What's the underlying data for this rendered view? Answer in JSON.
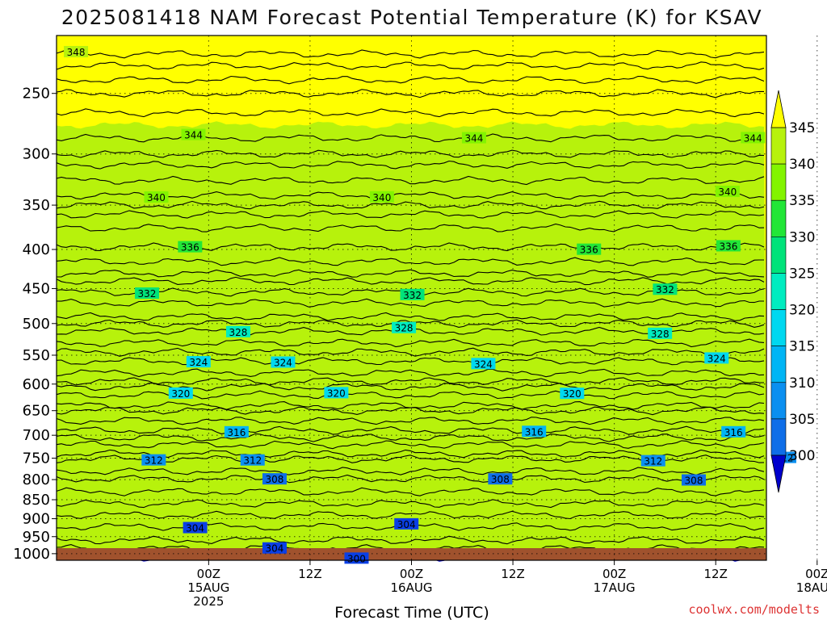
{
  "page": {
    "title": "2025081418 NAM Forecast Potential Temperature (K) for KSAV",
    "credit": "coolwx.com/modelts"
  },
  "colors": {
    "ground": "#a0522d",
    "fills": [
      "#0000cd",
      "#0a3fe6",
      "#0f6ee8",
      "#0b8ff0",
      "#00b5f5",
      "#00d8f0",
      "#00ecc0",
      "#00e37a",
      "#22e637",
      "#83f400",
      "#b7f20c",
      "#ffff00"
    ],
    "contour": "#000000",
    "credit_text": "#dd3333"
  },
  "chart_data": {
    "type": "heatmap",
    "title": "2025081418 NAM Forecast Potential Temperature (K) for KSAV",
    "xlabel": "Forecast Time (UTC)",
    "ylabel": "",
    "variable_units": "K",
    "x_hours_from_00z_15aug": [
      -18,
      66
    ],
    "y_pressure_hpa": [
      1020,
      210
    ],
    "y_scale": "log-pressure, inverted (1000 hPa at bottom)",
    "grid": "dotted",
    "y_ticks": [
      250,
      300,
      350,
      400,
      450,
      500,
      550,
      600,
      650,
      700,
      750,
      800,
      850,
      900,
      950,
      1000
    ],
    "x_ticks": [
      {
        "hour": 0,
        "lines": [
          "00Z",
          "15AUG",
          "2025"
        ]
      },
      {
        "hour": 12,
        "lines": [
          "12Z"
        ]
      },
      {
        "hour": 24,
        "lines": [
          "00Z",
          "16AUG"
        ]
      },
      {
        "hour": 36,
        "lines": [
          "12Z"
        ]
      },
      {
        "hour": 48,
        "lines": [
          "00Z",
          "17AUG"
        ]
      },
      {
        "hour": 60,
        "lines": [
          "12Z"
        ]
      },
      {
        "hour": 72,
        "lines": [
          "00Z",
          "18AUG"
        ]
      }
    ],
    "colorbar": {
      "labels": [
        345,
        340,
        335,
        330,
        325,
        320,
        315,
        310,
        305,
        300
      ],
      "extend": "both"
    },
    "filled_bands": [
      {
        "from_k": 295,
        "to_k": 300
      },
      {
        "from_k": 300,
        "to_k": 305
      },
      {
        "from_k": 305,
        "to_k": 310
      },
      {
        "from_k": 310,
        "to_k": 315
      },
      {
        "from_k": 315,
        "to_k": 320
      },
      {
        "from_k": 320,
        "to_k": 325
      },
      {
        "from_k": 325,
        "to_k": 330
      },
      {
        "from_k": 330,
        "to_k": 335
      },
      {
        "from_k": 335,
        "to_k": 340
      },
      {
        "from_k": 340,
        "to_k": 345
      },
      {
        "from_k": 345,
        "to_k": 350
      }
    ],
    "contours": [
      {
        "value": 304,
        "label": "304",
        "pressure_hpa": 922,
        "labels_at_hours": [
          -1.6,
          23.4
        ]
      },
      {
        "value": 300,
        "label": "300",
        "pressure_hpa": 1010,
        "labels_at_hours": [
          17.5
        ]
      },
      {
        "value": 304,
        "label": "304",
        "pressure_hpa": 985,
        "labels_at_hours": [
          7.8
        ]
      },
      {
        "value": 308,
        "label": "308",
        "pressure_hpa": 798,
        "labels_at_hours": [
          7.8,
          34.5,
          57.4
        ]
      },
      {
        "value": 312,
        "label": "312",
        "pressure_hpa": 752,
        "labels_at_hours": [
          -6.5,
          5.2,
          52.6,
          68.1
        ]
      },
      {
        "value": 316,
        "label": "316",
        "pressure_hpa": 690,
        "labels_at_hours": [
          3.3,
          38.5,
          62.1
        ]
      },
      {
        "value": 320,
        "label": "320",
        "pressure_hpa": 620,
        "labels_at_hours": [
          -3.3,
          15.1,
          43.0
        ]
      },
      {
        "value": 324,
        "label": "324",
        "pressure_hpa": 560,
        "labels_at_hours": [
          -1.2,
          8.8,
          32.5,
          60.1
        ]
      },
      {
        "value": 328,
        "label": "328",
        "pressure_hpa": 512,
        "labels_at_hours": [
          3.5,
          23.1,
          53.4
        ]
      },
      {
        "value": 332,
        "label": "332",
        "pressure_hpa": 455,
        "labels_at_hours": [
          -7.3,
          24.1,
          54.0
        ]
      },
      {
        "value": 336,
        "label": "336",
        "pressure_hpa": 397,
        "labels_at_hours": [
          -2.2,
          45.0,
          61.5
        ]
      },
      {
        "value": 340,
        "label": "340",
        "pressure_hpa": 340,
        "labels_at_hours": [
          -6.2,
          20.5,
          61.4
        ]
      },
      {
        "value": 344,
        "label": "344",
        "pressure_hpa": 286,
        "labels_at_hours": [
          -1.8,
          31.4,
          64.4
        ]
      },
      {
        "value": 348,
        "label": "348",
        "pressure_hpa": 222,
        "labels_at_hours": [
          -15.7
        ]
      }
    ]
  }
}
